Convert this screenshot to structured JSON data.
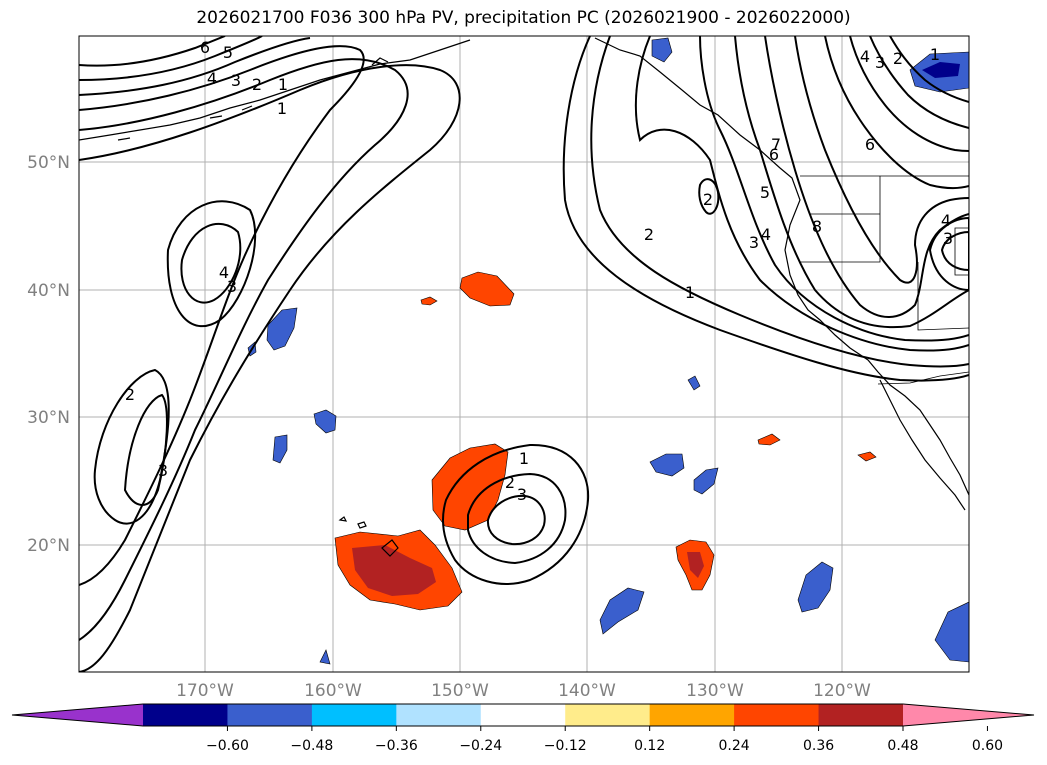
{
  "title": "2026021700 F036 300 hPa PV, precipitation PC (2026021900 - 2026022000)",
  "lat_labels": [
    "50°N",
    "40°N",
    "30°N",
    "20°N"
  ],
  "lon_labels": [
    "170°W",
    "160°W",
    "150°W",
    "140°W",
    "130°W",
    "120°W"
  ],
  "colorbar": {
    "tick_labels": [
      "−0.60",
      "−0.48",
      "−0.36",
      "−0.24",
      "−0.12",
      "0.12",
      "0.24",
      "0.36",
      "0.48",
      "0.60"
    ],
    "colors": [
      "#9932cc",
      "#00008b",
      "#3a5fcd",
      "#00bfff",
      "#b0e2ff",
      "#ffffff",
      "#ffec8b",
      "#ffa500",
      "#ff4500",
      "#b22222",
      "#ff88aa"
    ]
  },
  "contour_labels": [
    "6",
    "5",
    "4",
    "3",
    "2",
    "1",
    "1",
    "4",
    "3",
    "2",
    "3",
    "1",
    "2",
    "3",
    "2",
    "1",
    "2",
    "3",
    "4",
    "5",
    "6",
    "7",
    "8",
    "4",
    "3",
    "2",
    "1",
    "6",
    "4",
    "3"
  ]
}
